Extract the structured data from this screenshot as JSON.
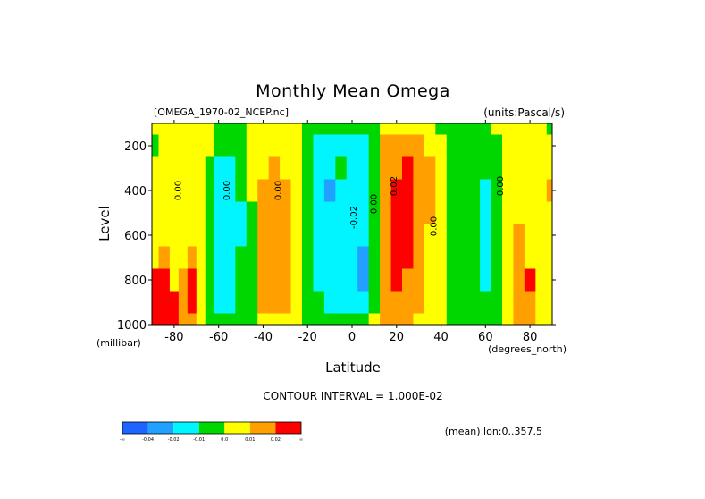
{
  "chart_data": {
    "type": "heatmap",
    "title": "Monthly Mean Omega",
    "dataset_label": "[OMEGA_1970-02_NCEP.nc]",
    "units_label": "(units:Pascal/s)",
    "xlabel": "Latitude",
    "x_unit_label": "(degrees_north)",
    "ylabel": "Level",
    "y_unit_label": "(millibar)",
    "xlim": [
      -90,
      90
    ],
    "ylim": [
      1000,
      100
    ],
    "x_ticks": [
      -80,
      -60,
      -40,
      -20,
      0,
      20,
      40,
      60,
      80
    ],
    "x_tick_labels": [
      "-80",
      "-60",
      "-40",
      "-20",
      "0",
      "20",
      "40",
      "60",
      "80"
    ],
    "y_ticks": [
      200,
      400,
      600,
      800,
      1000
    ],
    "y_tick_labels": [
      "200",
      "400",
      "600",
      "800",
      "1000"
    ],
    "contour_interval_label": "CONTOUR INTERVAL = 1.000E-02",
    "mean_label": "(mean) lon:0..357.5",
    "contour_labels": [
      {
        "text": "0.00",
        "x": -77,
        "y": 400
      },
      {
        "text": "0.00",
        "x": -55,
        "y": 400
      },
      {
        "text": "0.00",
        "x": -32,
        "y": 400
      },
      {
        "text": "-0.02",
        "x": 2,
        "y": 520
      },
      {
        "text": "0.00",
        "x": 11,
        "y": 460
      },
      {
        "text": "0.02",
        "x": 20,
        "y": 380
      },
      {
        "text": "0.00",
        "x": 38,
        "y": 560
      },
      {
        "text": "0.00",
        "x": 68,
        "y": 380
      }
    ],
    "colorbar": {
      "colors": [
        "#1e64ff",
        "#22a0ff",
        "#00f5ff",
        "#00d700",
        "#ffff00",
        "#ffa000",
        "#ff0000"
      ],
      "labels": [
        "-∞",
        "-0.04",
        "-0.02",
        "-0.01",
        "0.0",
        "0.01",
        "0.02",
        "∞"
      ]
    },
    "levels": [
      -0.04,
      -0.02,
      -0.01,
      0.0,
      0.01,
      0.02
    ],
    "x": [
      -90,
      -84,
      -80,
      -76,
      -72,
      -68,
      -64,
      -60,
      -55,
      -50,
      -45,
      -40,
      -35,
      -30,
      -25,
      -20,
      -15,
      -10,
      -5,
      0,
      5,
      10,
      15,
      20,
      25,
      30,
      35,
      40,
      45,
      50,
      55,
      60,
      65,
      70,
      75,
      80,
      85,
      90
    ],
    "y": [
      100,
      200,
      300,
      400,
      500,
      600,
      700,
      800,
      900,
      1000
    ],
    "z": [
      [
        0.003,
        0.003,
        0.003,
        0.003,
        0.003,
        0.003,
        0.003,
        -0.005,
        -0.005,
        -0.005,
        0.003,
        0.003,
        0.003,
        0.003,
        0.003,
        -0.005,
        -0.005,
        -0.005,
        -0.005,
        -0.005,
        -0.005,
        -0.005,
        0.003,
        0.003,
        0.003,
        0.003,
        0.003,
        -0.005,
        -0.005,
        -0.005,
        -0.005,
        -0.005,
        0.003,
        0.003,
        0.003,
        0.003,
        0.003,
        -0.005
      ],
      [
        -0.005,
        0.003,
        0.003,
        0.003,
        0.003,
        0.003,
        0.003,
        -0.005,
        -0.005,
        -0.005,
        0.003,
        0.003,
        0.003,
        0.003,
        0.003,
        -0.005,
        -0.015,
        -0.015,
        -0.015,
        -0.015,
        -0.015,
        -0.005,
        0.013,
        0.013,
        0.013,
        0.013,
        0.003,
        0.003,
        -0.005,
        -0.005,
        -0.005,
        -0.005,
        -0.005,
        0.003,
        0.003,
        0.003,
        0.003,
        0.003
      ],
      [
        0.003,
        0.003,
        0.003,
        0.003,
        0.003,
        0.003,
        -0.005,
        -0.015,
        -0.015,
        -0.005,
        0.003,
        0.003,
        0.013,
        0.003,
        0.003,
        -0.005,
        -0.015,
        -0.015,
        -0.005,
        -0.015,
        -0.015,
        -0.005,
        0.013,
        0.013,
        0.025,
        0.013,
        0.013,
        0.003,
        -0.005,
        -0.005,
        -0.005,
        -0.005,
        -0.005,
        0.003,
        0.003,
        0.003,
        0.003,
        0.003
      ],
      [
        0.003,
        0.003,
        0.003,
        0.003,
        0.003,
        0.003,
        -0.005,
        -0.015,
        -0.015,
        -0.005,
        0.003,
        0.013,
        0.013,
        0.013,
        0.003,
        -0.005,
        -0.015,
        -0.025,
        -0.015,
        -0.015,
        -0.015,
        -0.005,
        0.013,
        0.025,
        0.025,
        0.013,
        0.013,
        0.003,
        -0.005,
        -0.005,
        -0.005,
        -0.015,
        -0.005,
        0.003,
        0.003,
        0.003,
        0.003,
        0.013
      ],
      [
        0.003,
        0.003,
        0.003,
        0.003,
        0.003,
        0.003,
        -0.005,
        -0.015,
        -0.015,
        -0.015,
        -0.005,
        0.013,
        0.013,
        0.013,
        0.003,
        -0.005,
        -0.015,
        -0.015,
        -0.015,
        -0.015,
        -0.015,
        -0.005,
        0.013,
        0.025,
        0.025,
        0.013,
        0.013,
        0.003,
        -0.005,
        -0.005,
        -0.005,
        -0.015,
        -0.005,
        0.003,
        0.003,
        0.003,
        0.003,
        0.003
      ],
      [
        0.003,
        0.003,
        0.003,
        0.003,
        0.003,
        0.003,
        -0.005,
        -0.015,
        -0.015,
        -0.015,
        -0.005,
        0.013,
        0.013,
        0.013,
        0.003,
        -0.005,
        -0.015,
        -0.015,
        -0.015,
        -0.015,
        -0.015,
        -0.005,
        0.013,
        0.025,
        0.025,
        0.013,
        0.003,
        0.003,
        -0.005,
        -0.005,
        -0.005,
        -0.015,
        -0.005,
        0.003,
        0.013,
        0.003,
        0.003,
        0.003
      ],
      [
        0.003,
        0.013,
        0.003,
        0.003,
        0.013,
        0.003,
        -0.005,
        -0.015,
        -0.015,
        -0.005,
        -0.005,
        0.013,
        0.013,
        0.013,
        0.003,
        -0.005,
        -0.015,
        -0.015,
        -0.015,
        -0.015,
        -0.025,
        -0.005,
        0.013,
        0.025,
        0.025,
        0.013,
        0.003,
        0.003,
        -0.005,
        -0.005,
        -0.005,
        -0.015,
        -0.005,
        0.003,
        0.013,
        0.003,
        0.003,
        0.003
      ],
      [
        0.025,
        0.025,
        0.003,
        0.013,
        0.025,
        0.003,
        -0.005,
        -0.015,
        -0.015,
        -0.005,
        -0.005,
        0.013,
        0.013,
        0.013,
        0.003,
        -0.005,
        -0.015,
        -0.015,
        -0.015,
        -0.015,
        -0.025,
        -0.005,
        0.013,
        0.025,
        0.013,
        0.013,
        0.003,
        0.003,
        -0.005,
        -0.005,
        -0.005,
        -0.015,
        -0.005,
        0.003,
        0.013,
        0.025,
        0.003,
        0.003
      ],
      [
        0.025,
        0.025,
        0.025,
        0.013,
        0.025,
        0.003,
        -0.005,
        -0.015,
        -0.015,
        -0.005,
        -0.005,
        0.013,
        0.013,
        0.013,
        0.003,
        -0.005,
        -0.005,
        -0.015,
        -0.015,
        -0.015,
        -0.015,
        -0.005,
        0.013,
        0.013,
        0.013,
        0.013,
        0.003,
        0.003,
        -0.005,
        -0.005,
        -0.005,
        -0.005,
        -0.005,
        0.003,
        0.013,
        0.013,
        0.003,
        0.003
      ],
      [
        0.025,
        0.025,
        0.025,
        0.013,
        0.013,
        0.003,
        -0.005,
        -0.005,
        -0.005,
        -0.005,
        -0.005,
        0.003,
        0.003,
        0.003,
        0.003,
        -0.005,
        -0.005,
        -0.005,
        -0.005,
        -0.005,
        -0.005,
        0.003,
        0.013,
        0.013,
        0.013,
        0.003,
        0.003,
        0.003,
        -0.005,
        -0.005,
        -0.005,
        -0.005,
        -0.005,
        0.003,
        0.013,
        0.013,
        0.003,
        0.003
      ]
    ]
  }
}
